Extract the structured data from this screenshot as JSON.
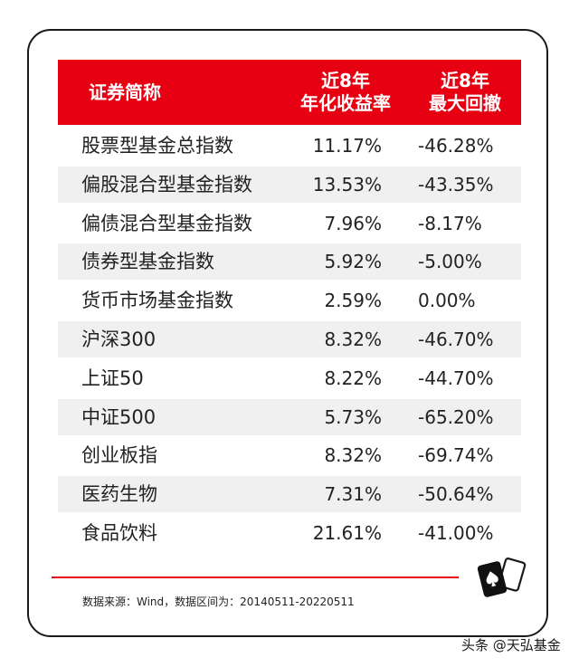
{
  "table": {
    "headers": {
      "name": "证券简称",
      "return": [
        "近8年",
        "年化收益率"
      ],
      "drawdown": [
        "近8年",
        "最大回撤"
      ]
    },
    "rows": [
      {
        "name": "股票型基金总指数",
        "return": "11.17%",
        "drawdown": "-46.28%"
      },
      {
        "name": "偏股混合型基金指数",
        "return": "13.53%",
        "drawdown": "-43.35%"
      },
      {
        "name": "偏债混合型基金指数",
        "return": "7.96%",
        "drawdown": "-8.17%"
      },
      {
        "name": "债券型基金指数",
        "return": "5.92%",
        "drawdown": "-5.00%"
      },
      {
        "name": "货币市场基金指数",
        "return": "2.59%",
        "drawdown": "0.00%"
      },
      {
        "name": "沪深300",
        "return": "8.32%",
        "drawdown": "-46.70%"
      },
      {
        "name": "上证50",
        "return": "8.22%",
        "drawdown": "-44.70%"
      },
      {
        "name": "中证500",
        "return": "5.73%",
        "drawdown": "-65.20%"
      },
      {
        "name": "创业板指",
        "return": "8.32%",
        "drawdown": "-69.74%"
      },
      {
        "name": "医药生物",
        "return": "7.31%",
        "drawdown": "-50.64%"
      },
      {
        "name": "食品饮料",
        "return": "21.61%",
        "drawdown": "-41.00%"
      }
    ]
  },
  "source_note": "数据来源：Wind，数据区间为：20140511-20220511",
  "watermark": "头条 @天弘基金",
  "icons": {
    "decoration": "playing-cards-icon"
  },
  "colors": {
    "accent": "#e60012",
    "row_shade": "#f0f0f0"
  }
}
